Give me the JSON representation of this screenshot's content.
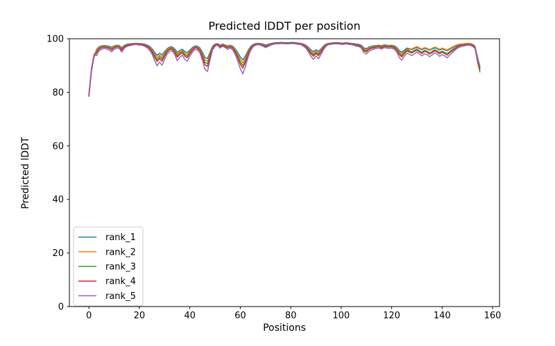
{
  "figure": {
    "background": "#ffffff",
    "spine_color": "#000000",
    "text_color": "#000000"
  },
  "chart_data": {
    "type": "line",
    "title": "Predicted lDDT per position",
    "xlabel": "Positions",
    "ylabel": "Predicted lDDT",
    "xlim": [
      -7.75,
      162.75
    ],
    "ylim": [
      0,
      100
    ],
    "xticks": [
      0,
      20,
      40,
      60,
      80,
      100,
      120,
      140,
      160
    ],
    "yticks": [
      0,
      20,
      40,
      60,
      80,
      100
    ],
    "grid": false,
    "legend": {
      "location": "lower left",
      "border_color": "#cccccc",
      "background": "#ffffff",
      "entries": [
        "rank_1",
        "rank_2",
        "rank_3",
        "rank_4",
        "rank_5"
      ]
    },
    "x": {
      "start": 0,
      "step": 1,
      "count": 156
    },
    "series": [
      {
        "name": "rank_1",
        "color": "#1f77b4",
        "values": [
          78.5,
          88.0,
          93.5,
          96.0,
          97.0,
          97.3,
          97.5,
          97.4,
          97.2,
          96.8,
          97.3,
          97.6,
          97.5,
          96.7,
          97.5,
          97.9,
          98.1,
          98.2,
          98.3,
          98.3,
          98.2,
          98.2,
          98.0,
          97.7,
          97.2,
          96.3,
          95.0,
          93.8,
          94.6,
          93.9,
          95.2,
          96.3,
          96.9,
          97.0,
          96.2,
          94.9,
          95.6,
          96.1,
          95.2,
          94.8,
          95.8,
          96.7,
          97.3,
          97.2,
          96.6,
          95.0,
          93.0,
          92.6,
          95.0,
          97.2,
          98.0,
          98.2,
          97.6,
          98.0,
          97.7,
          97.3,
          97.6,
          97.2,
          96.2,
          94.8,
          93.2,
          92.1,
          93.5,
          95.5,
          97.0,
          97.8,
          98.2,
          98.3,
          98.2,
          98.0,
          97.7,
          97.9,
          98.2,
          98.4,
          98.5,
          98.5,
          98.6,
          98.6,
          98.5,
          98.5,
          98.6,
          98.6,
          98.5,
          98.4,
          98.3,
          98.0,
          97.6,
          96.8,
          95.8,
          95.2,
          95.9,
          95.3,
          96.2,
          97.3,
          98.0,
          98.3,
          98.4,
          98.5,
          98.5,
          98.5,
          98.4,
          98.4,
          98.5,
          98.4,
          98.3,
          98.2,
          98.0,
          97.9,
          97.6,
          96.6,
          96.3,
          96.9,
          97.2,
          97.4,
          97.5,
          97.6,
          97.4,
          97.7,
          97.6,
          97.5,
          97.6,
          97.4,
          96.8,
          95.6,
          95.0,
          95.8,
          96.5,
          96.3,
          96.0,
          96.4,
          96.8,
          96.3,
          95.9,
          96.4,
          96.2,
          95.7,
          96.1,
          96.6,
          96.3,
          95.8,
          96.2,
          95.9,
          95.5,
          96.1,
          96.6,
          97.1,
          97.5,
          97.8,
          98.0,
          98.1,
          98.2,
          98.2,
          98.0,
          97.3,
          93.5,
          89.5
        ]
      },
      {
        "name": "rank_2",
        "color": "#ff7f0e",
        "values": [
          79.5,
          88.8,
          94.0,
          95.5,
          96.7,
          97.0,
          97.3,
          97.1,
          96.9,
          96.4,
          97.0,
          97.4,
          97.3,
          96.3,
          97.3,
          97.7,
          97.9,
          98.1,
          98.2,
          98.2,
          98.1,
          98.1,
          97.8,
          97.5,
          96.9,
          95.9,
          94.4,
          93.0,
          93.9,
          93.1,
          94.6,
          95.9,
          96.6,
          96.7,
          95.8,
          94.3,
          95.1,
          95.6,
          94.6,
          94.1,
          95.3,
          96.3,
          97.0,
          96.9,
          96.2,
          94.4,
          92.1,
          91.6,
          94.4,
          96.9,
          97.8,
          98.1,
          97.4,
          97.8,
          97.5,
          97.0,
          97.4,
          96.9,
          95.8,
          94.1,
          92.3,
          91.0,
          92.7,
          95.0,
          96.7,
          97.6,
          98.1,
          98.2,
          98.1,
          97.8,
          97.5,
          97.7,
          98.1,
          98.3,
          98.4,
          98.4,
          98.5,
          98.5,
          98.4,
          98.4,
          98.5,
          98.5,
          98.4,
          98.3,
          98.2,
          97.8,
          97.4,
          96.4,
          95.3,
          94.6,
          95.4,
          94.7,
          95.8,
          97.0,
          97.8,
          98.2,
          98.3,
          98.4,
          98.4,
          98.4,
          98.3,
          98.3,
          98.4,
          98.3,
          98.2,
          98.1,
          97.8,
          97.7,
          97.4,
          96.2,
          95.9,
          96.6,
          96.9,
          97.1,
          97.3,
          97.4,
          97.1,
          97.5,
          97.4,
          97.3,
          97.4,
          97.1,
          96.4,
          95.1,
          94.4,
          95.3,
          96.1,
          95.9,
          96.3,
          96.7,
          97.1,
          96.6,
          96.2,
          96.7,
          96.5,
          96.0,
          96.4,
          96.9,
          96.6,
          96.1,
          96.5,
          96.2,
          95.8,
          96.4,
          96.9,
          97.4,
          97.8,
          98.0,
          98.1,
          98.2,
          98.3,
          98.2,
          98.0,
          97.0,
          93.0,
          89.2
        ]
      },
      {
        "name": "rank_3",
        "color": "#2ca02c",
        "values": [
          79.0,
          88.3,
          93.7,
          95.1,
          96.4,
          96.8,
          97.1,
          96.9,
          96.7,
          96.1,
          96.8,
          97.2,
          97.1,
          96.0,
          97.1,
          97.6,
          97.8,
          98.0,
          98.1,
          98.1,
          98.0,
          98.0,
          97.7,
          97.3,
          96.7,
          95.5,
          93.8,
          92.2,
          93.3,
          92.4,
          94.1,
          95.5,
          96.3,
          96.4,
          95.4,
          93.7,
          94.6,
          95.2,
          94.1,
          93.5,
          94.8,
          96.0,
          96.8,
          96.7,
          95.9,
          93.8,
          91.2,
          90.7,
          93.8,
          96.7,
          97.7,
          98.0,
          97.2,
          97.7,
          97.3,
          96.8,
          97.2,
          96.7,
          95.4,
          93.5,
          91.4,
          90.0,
          91.9,
          94.5,
          96.4,
          97.4,
          98.0,
          98.1,
          98.0,
          97.7,
          97.3,
          97.6,
          98.0,
          98.2,
          98.4,
          98.4,
          98.5,
          98.5,
          98.4,
          98.4,
          98.5,
          98.5,
          98.4,
          98.2,
          98.1,
          97.7,
          97.2,
          96.1,
          94.8,
          94.1,
          94.9,
          94.2,
          95.4,
          96.8,
          97.7,
          98.1,
          98.2,
          98.4,
          98.4,
          98.4,
          98.2,
          98.2,
          98.4,
          98.2,
          98.1,
          98.0,
          97.7,
          97.6,
          97.2,
          95.9,
          95.5,
          96.3,
          96.7,
          96.9,
          97.1,
          97.2,
          96.9,
          97.3,
          97.2,
          97.1,
          97.2,
          96.9,
          96.1,
          94.6,
          93.8,
          94.8,
          95.8,
          95.5,
          95.1,
          95.7,
          96.1,
          95.5,
          94.9,
          95.7,
          95.4,
          94.7,
          95.2,
          95.9,
          95.5,
          94.8,
          95.4,
          94.9,
          94.5,
          95.2,
          95.9,
          96.5,
          97.1,
          97.4,
          97.7,
          97.8,
          98.0,
          98.0,
          97.7,
          96.6,
          91.5,
          87.6
        ]
      },
      {
        "name": "rank_4",
        "color": "#d62728",
        "values": [
          78.8,
          88.0,
          93.3,
          94.7,
          96.1,
          96.6,
          96.9,
          96.7,
          96.4,
          95.8,
          96.6,
          97.0,
          96.9,
          95.7,
          96.9,
          97.4,
          97.7,
          97.9,
          98.0,
          98.0,
          97.9,
          97.9,
          97.6,
          97.1,
          96.4,
          95.1,
          93.2,
          91.5,
          92.6,
          91.6,
          93.5,
          95.1,
          96.0,
          96.1,
          95.0,
          93.1,
          94.1,
          94.8,
          93.5,
          92.9,
          94.4,
          95.7,
          96.6,
          96.4,
          95.5,
          93.2,
          90.3,
          89.7,
          93.2,
          96.4,
          97.6,
          97.9,
          97.0,
          97.6,
          97.1,
          96.6,
          97.0,
          96.4,
          95.0,
          92.9,
          90.5,
          89.0,
          91.1,
          93.9,
          96.1,
          97.3,
          97.9,
          98.0,
          97.9,
          97.6,
          97.1,
          97.4,
          97.9,
          98.2,
          98.3,
          98.3,
          98.4,
          98.4,
          98.3,
          98.3,
          98.4,
          98.4,
          98.3,
          98.2,
          98.0,
          97.6,
          97.0,
          95.8,
          94.4,
          93.5,
          94.5,
          93.7,
          95.0,
          96.6,
          97.6,
          98.0,
          98.2,
          98.3,
          98.3,
          98.3,
          98.2,
          98.2,
          98.3,
          98.2,
          98.0,
          97.9,
          97.6,
          97.4,
          97.0,
          95.5,
          95.1,
          96.0,
          96.4,
          96.6,
          96.9,
          97.0,
          96.6,
          97.1,
          97.0,
          96.9,
          97.0,
          96.6,
          95.8,
          94.1,
          93.2,
          94.4,
          95.4,
          95.1,
          94.7,
          95.3,
          95.8,
          95.1,
          94.5,
          95.3,
          95.0,
          94.3,
          94.8,
          95.5,
          95.1,
          94.4,
          95.0,
          94.5,
          93.9,
          94.8,
          95.5,
          96.2,
          96.9,
          97.3,
          97.6,
          97.7,
          97.9,
          97.9,
          97.6,
          96.8,
          92.0,
          88.6
        ]
      },
      {
        "name": "rank_5",
        "color": "#9467bd",
        "values": [
          79.8,
          89.0,
          94.2,
          93.7,
          95.5,
          96.0,
          96.4,
          96.2,
          95.8,
          95.1,
          96.0,
          96.5,
          96.4,
          95.0,
          96.4,
          97.1,
          97.4,
          97.6,
          97.8,
          97.8,
          97.6,
          97.6,
          97.2,
          96.7,
          95.8,
          94.3,
          92.0,
          89.9,
          91.3,
          90.1,
          92.3,
          94.3,
          95.3,
          95.5,
          94.1,
          91.8,
          93.0,
          93.9,
          92.3,
          91.6,
          93.4,
          95.0,
          96.0,
          95.8,
          94.8,
          92.0,
          88.5,
          87.8,
          92.0,
          95.8,
          97.2,
          97.6,
          96.5,
          97.2,
          96.7,
          96.0,
          96.5,
          95.8,
          94.1,
          91.6,
          88.8,
          86.9,
          89.4,
          92.9,
          95.5,
          96.9,
          97.6,
          97.8,
          97.6,
          97.2,
          96.7,
          97.1,
          97.6,
          97.9,
          98.1,
          98.1,
          98.2,
          98.2,
          98.1,
          98.1,
          98.2,
          98.2,
          98.1,
          97.9,
          97.8,
          97.2,
          96.5,
          95.1,
          93.4,
          92.3,
          93.6,
          92.5,
          94.1,
          96.0,
          97.2,
          97.8,
          97.9,
          98.1,
          98.1,
          98.1,
          97.9,
          97.9,
          98.1,
          97.9,
          97.8,
          97.6,
          97.2,
          97.1,
          96.5,
          94.8,
          94.3,
          95.3,
          95.8,
          96.1,
          96.4,
          96.5,
          96.1,
          96.7,
          96.5,
          96.4,
          96.5,
          96.1,
          95.1,
          93.0,
          92.0,
          93.4,
          94.6,
          94.3,
          93.7,
          94.4,
          95.1,
          94.3,
          93.6,
          94.4,
          94.1,
          93.3,
          93.9,
          94.8,
          94.3,
          93.4,
          94.1,
          93.6,
          92.9,
          93.9,
          94.8,
          95.7,
          96.4,
          96.9,
          97.2,
          97.4,
          97.6,
          97.6,
          97.2,
          96.4,
          92.5,
          89.8
        ]
      }
    ]
  }
}
